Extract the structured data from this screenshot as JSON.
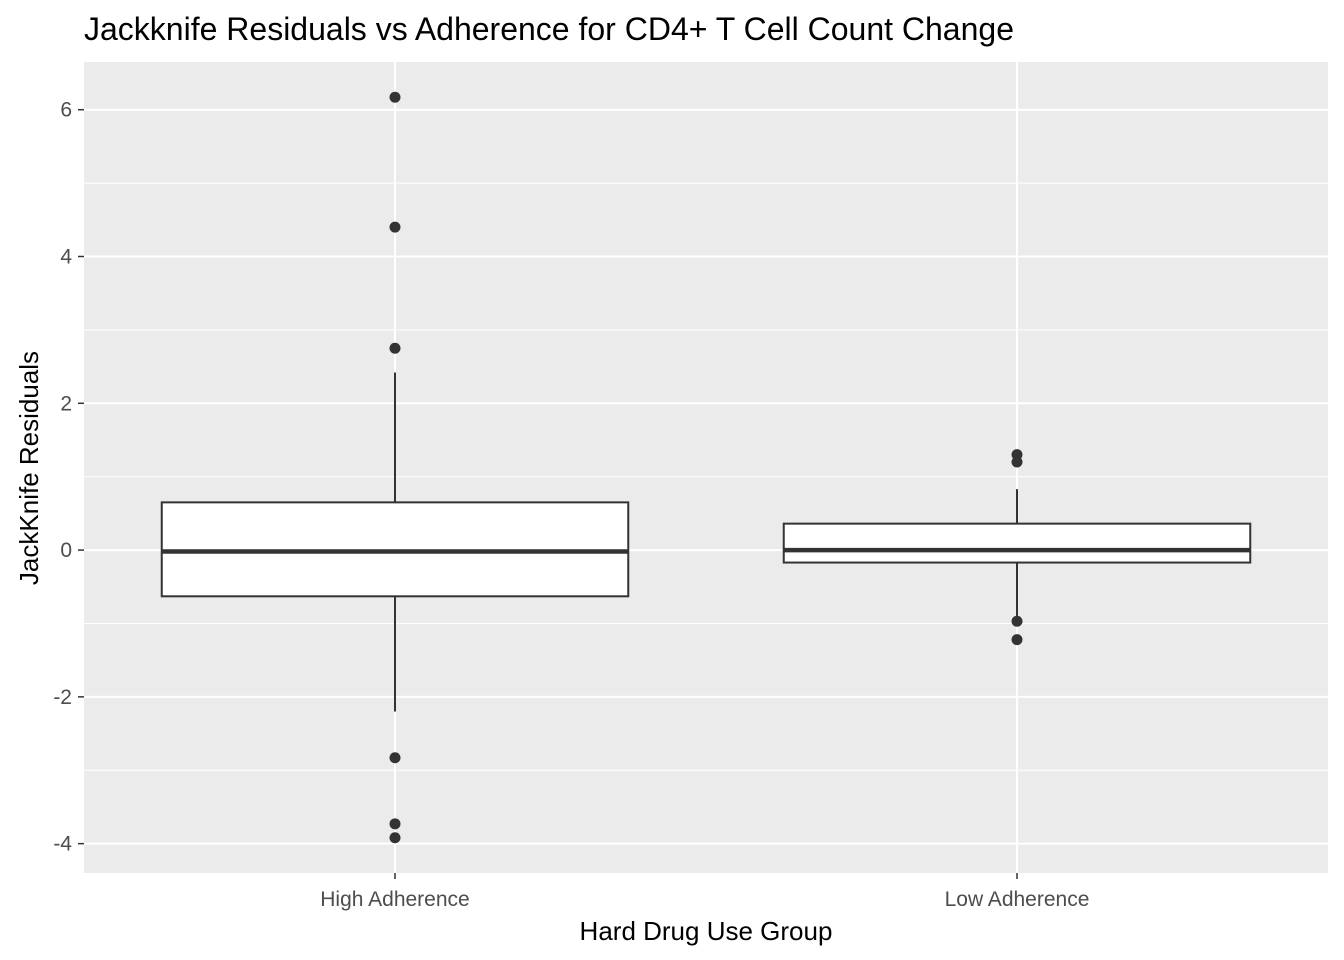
{
  "chart_data": {
    "type": "boxplot",
    "title": "Jackknife Residuals vs Adherence for CD4+ T Cell Count Change",
    "xlabel": "Hard Drug Use Group",
    "ylabel": "JackKnife Residuals",
    "ylim": [
      -4.4,
      6.65
    ],
    "yticks": [
      -4,
      -2,
      0,
      2,
      4,
      6
    ],
    "categories": [
      "High Adherence",
      "Low Adherence"
    ],
    "boxes": [
      {
        "category": "High Adherence",
        "lower_whisker": -2.2,
        "q1": -0.63,
        "median": -0.02,
        "q3": 0.65,
        "upper_whisker": 2.42,
        "outliers": [
          6.17,
          4.4,
          2.75,
          -2.83,
          -3.73,
          -3.92
        ]
      },
      {
        "category": "Low Adherence",
        "lower_whisker": -0.95,
        "q1": -0.17,
        "median": 0.0,
        "q3": 0.36,
        "upper_whisker": 0.83,
        "outliers": [
          1.3,
          1.2,
          -0.97,
          -1.22
        ]
      }
    ],
    "grid": true,
    "colors": {
      "panel": "#ebebeb",
      "grid": "#ffffff",
      "box_fill": "#ffffff",
      "box_line": "#333333",
      "point": "#333333",
      "tick_label": "#4d4d4d"
    }
  }
}
